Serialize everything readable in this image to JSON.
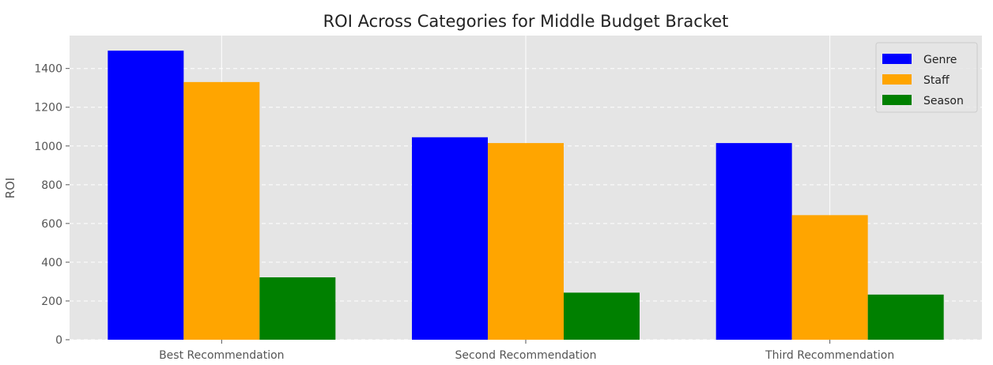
{
  "chart_data": {
    "type": "bar",
    "title": "ROI Across Categories for Middle Budget Bracket",
    "xlabel": "",
    "ylabel": "ROI",
    "categories": [
      "Best Recommendation",
      "Second Recommendation",
      "Third Recommendation"
    ],
    "series": [
      {
        "name": "Genre",
        "color": "#0000ff",
        "values": [
          1492,
          1045,
          1015
        ]
      },
      {
        "name": "Staff",
        "color": "#ffa500",
        "values": [
          1330,
          1015,
          643
        ]
      },
      {
        "name": "Season",
        "color": "#008000",
        "values": [
          322,
          243,
          233
        ]
      }
    ],
    "ylim": [
      0,
      1570
    ],
    "yticks": [
      0,
      200,
      400,
      600,
      800,
      1000,
      1200,
      1400
    ],
    "grid": true,
    "legend_position": "top-right",
    "style": {
      "plot_background": "#e5e5e5",
      "grid_color": "#ffffff"
    }
  }
}
